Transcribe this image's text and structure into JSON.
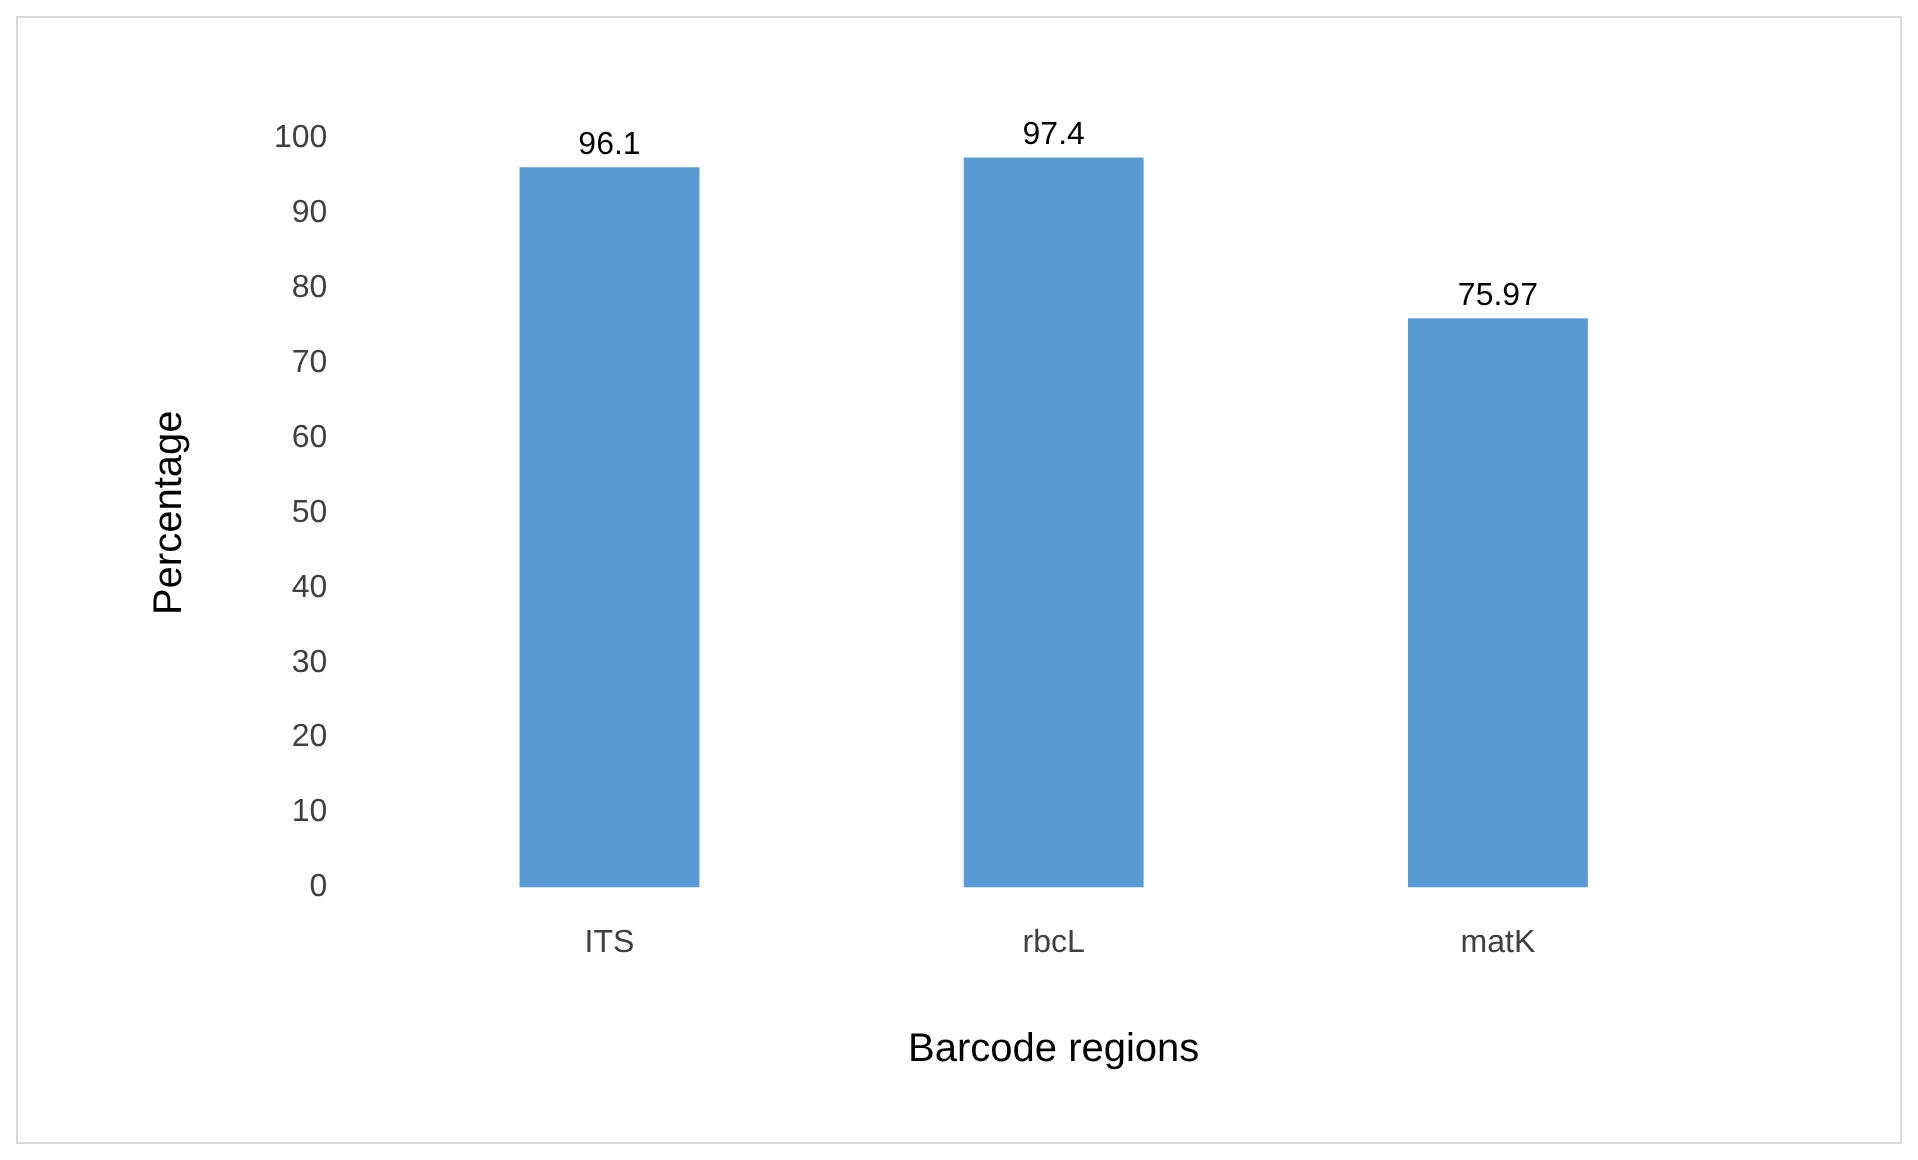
{
  "chart_data": {
    "type": "bar",
    "categories": [
      "ITS",
      "rbcL",
      "matK"
    ],
    "values": [
      96.1,
      97.4,
      75.97
    ],
    "color": "#5b9bd5",
    "xlabel": "Barcode regions",
    "ylabel": "Percentage",
    "ylim": [
      0,
      100
    ],
    "yticks": [
      0,
      10,
      20,
      30,
      40,
      50,
      60,
      70,
      80,
      90,
      100
    ],
    "grid": false,
    "legend": false,
    "data_labels": true
  }
}
